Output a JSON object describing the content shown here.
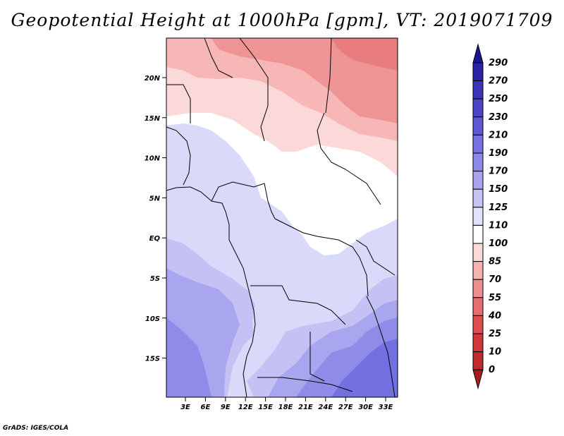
{
  "title": "Geopotential Height at 1000hPa [gpm], VT: 2019071709",
  "credit": "GrADS: IGES/COLA",
  "map": {
    "lat_ticks": [
      "20N",
      "15N",
      "10N",
      "5N",
      "EQ",
      "5S",
      "10S",
      "15S"
    ],
    "lon_ticks": [
      "3E",
      "6E",
      "9E",
      "12E",
      "15E",
      "18E",
      "21E",
      "24E",
      "27E",
      "30E",
      "33E"
    ]
  },
  "colorbar": {
    "levels": [
      "290",
      "270",
      "250",
      "230",
      "210",
      "190",
      "170",
      "150",
      "125",
      "110",
      "100",
      "85",
      "70",
      "55",
      "40",
      "25",
      "10",
      "0"
    ],
    "colors": [
      "#1c1496",
      "#2a23a8",
      "#3a33b8",
      "#4c45c8",
      "#5f58d4",
      "#7670e0",
      "#8e89e8",
      "#a8a4ef",
      "#c6c4f4",
      "#e2e2fa",
      "#ffffff",
      "#fcd9d9",
      "#f5b2b2",
      "#ee8f8f",
      "#e66e6e",
      "#de4e4e",
      "#d23636",
      "#c02a2a",
      "#a81e1e"
    ]
  }
}
